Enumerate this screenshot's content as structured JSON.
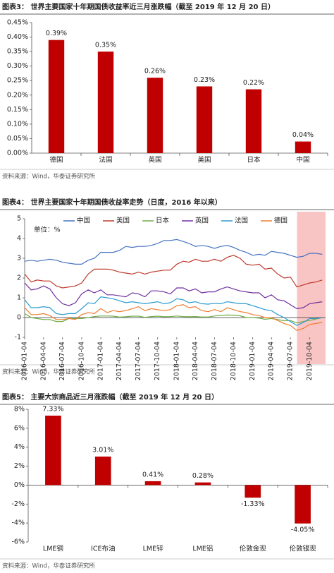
{
  "chart_data": [
    {
      "type": "bar",
      "title": "图表3：  世界主要国家十年期国债收益率近三月涨跌幅（截至 2019 年 12 月 20 日）",
      "source": "资料来源：Wind，华泰证券研究所",
      "categories": [
        "德国",
        "法国",
        "英国",
        "美国",
        "日本",
        "中国"
      ],
      "values": [
        0.39,
        0.35,
        0.26,
        0.23,
        0.22,
        0.04
      ],
      "value_labels": [
        "0.39%",
        "0.35%",
        "0.26%",
        "0.23%",
        "0.22%",
        "0.04%"
      ],
      "color": "#c00000",
      "ylim": [
        0,
        0.45
      ],
      "yticks": [
        {
          "value": 0,
          "label": "0.00%"
        },
        {
          "value": 0.05,
          "label": "0.05%"
        },
        {
          "value": 0.1,
          "label": "0.10%"
        },
        {
          "value": 0.15,
          "label": "0.15%"
        },
        {
          "value": 0.2,
          "label": "0.20%"
        },
        {
          "value": 0.25,
          "label": "0.25%"
        },
        {
          "value": 0.3,
          "label": "0.30%"
        },
        {
          "value": 0.35,
          "label": "0.35%"
        },
        {
          "value": 0.4,
          "label": "0.40%"
        },
        {
          "value": 0.45,
          "label": "0.45%"
        }
      ]
    },
    {
      "type": "line",
      "title": "图表4：  世界主要国家十年期国债收益率走势（日度，2016 年以来）",
      "source": "资料来源：Wind，华泰证券研究所",
      "annotation": "单位：%",
      "legend": "top",
      "highlight_x": [
        "2019-08-05",
        "2019-12-20"
      ],
      "highlight_color": "#f8c4c4",
      "xlim": [
        "2016-01-04",
        "2019-12-20"
      ],
      "xticks": [
        "2016-01-04",
        "2016-04-04",
        "2016-07-04",
        "2016-10-04",
        "2017-01-04",
        "2017-04-04",
        "2017-07-04",
        "2017-10-04",
        "2018-01-04",
        "2018-04-04",
        "2018-07-04",
        "2018-10-04",
        "2019-01-04",
        "2019-04-04",
        "2019-07-04",
        "2019-10-04"
      ],
      "ylim": [
        -1,
        5
      ],
      "yticks": [
        -1,
        0,
        1,
        2,
        3,
        4,
        5
      ],
      "x": [
        "2016-01-04",
        "2016-02-04",
        "2016-03-04",
        "2016-04-04",
        "2016-05-04",
        "2016-06-04",
        "2016-07-04",
        "2016-08-04",
        "2016-09-04",
        "2016-10-04",
        "2016-11-04",
        "2016-12-04",
        "2017-01-04",
        "2017-02-04",
        "2017-03-04",
        "2017-04-04",
        "2017-05-04",
        "2017-06-04",
        "2017-07-04",
        "2017-08-04",
        "2017-09-04",
        "2017-10-04",
        "2017-11-04",
        "2017-12-04",
        "2018-01-04",
        "2018-02-04",
        "2018-03-04",
        "2018-04-04",
        "2018-05-04",
        "2018-06-04",
        "2018-07-04",
        "2018-08-04",
        "2018-09-04",
        "2018-10-04",
        "2018-11-04",
        "2018-12-04",
        "2019-01-04",
        "2019-02-04",
        "2019-03-04",
        "2019-04-04",
        "2019-05-04",
        "2019-06-04",
        "2019-07-04",
        "2019-08-04",
        "2019-09-04",
        "2019-10-04",
        "2019-11-04",
        "2019-12-04"
      ],
      "series": [
        {
          "name": "中国",
          "color": "#4472c4",
          "values": [
            2.85,
            2.9,
            2.85,
            2.9,
            2.95,
            2.9,
            2.8,
            2.75,
            2.7,
            2.7,
            2.9,
            3.0,
            3.3,
            3.3,
            3.3,
            3.4,
            3.6,
            3.55,
            3.6,
            3.6,
            3.65,
            3.75,
            3.9,
            3.9,
            3.95,
            3.85,
            3.75,
            3.6,
            3.65,
            3.6,
            3.5,
            3.6,
            3.65,
            3.55,
            3.4,
            3.3,
            3.15,
            3.2,
            3.15,
            3.35,
            3.3,
            3.25,
            3.15,
            3.05,
            3.1,
            3.25,
            3.25,
            3.2
          ]
        },
        {
          "name": "美国",
          "color": "#c0392b",
          "values": [
            2.2,
            1.8,
            1.9,
            1.85,
            1.85,
            1.6,
            1.5,
            1.55,
            1.6,
            1.75,
            2.2,
            2.45,
            2.45,
            2.45,
            2.4,
            2.3,
            2.25,
            2.2,
            2.3,
            2.2,
            2.3,
            2.35,
            2.4,
            2.4,
            2.7,
            2.85,
            2.8,
            2.95,
            2.85,
            2.85,
            2.95,
            2.85,
            3.05,
            3.15,
            3.0,
            2.7,
            2.65,
            2.7,
            2.45,
            2.5,
            2.2,
            2.0,
            2.05,
            1.55,
            1.65,
            1.75,
            1.8,
            1.9
          ]
        },
        {
          "name": "日本",
          "color": "#70ad47",
          "values": [
            0.2,
            0.0,
            -0.05,
            -0.1,
            -0.1,
            -0.2,
            -0.2,
            -0.05,
            -0.05,
            -0.05,
            0.0,
            0.05,
            0.08,
            0.08,
            0.07,
            0.02,
            0.04,
            0.07,
            0.07,
            0.01,
            0.05,
            0.07,
            0.04,
            0.05,
            0.08,
            0.05,
            0.04,
            0.05,
            0.03,
            0.03,
            0.08,
            0.11,
            0.13,
            0.12,
            0.09,
            0.0,
            0.0,
            -0.03,
            -0.09,
            -0.05,
            -0.1,
            -0.16,
            -0.15,
            -0.27,
            -0.2,
            -0.15,
            -0.07,
            -0.01
          ]
        },
        {
          "name": "英国",
          "color": "#7030a0",
          "values": [
            1.75,
            1.4,
            1.45,
            1.6,
            1.45,
            1.0,
            0.7,
            0.6,
            0.75,
            1.2,
            1.4,
            1.25,
            1.4,
            1.15,
            1.15,
            1.1,
            1.05,
            1.25,
            1.2,
            1.05,
            1.35,
            1.35,
            1.3,
            1.2,
            1.5,
            1.5,
            1.35,
            1.45,
            1.25,
            1.3,
            1.3,
            1.45,
            1.55,
            1.45,
            1.35,
            1.3,
            1.25,
            1.25,
            1.0,
            1.15,
            0.9,
            0.85,
            0.65,
            0.45,
            0.5,
            0.7,
            0.75,
            0.8
          ]
        },
        {
          "name": "法国",
          "color": "#2e9ccf",
          "values": [
            0.9,
            0.5,
            0.5,
            0.55,
            0.5,
            0.2,
            0.15,
            0.2,
            0.2,
            0.45,
            0.75,
            0.7,
            1.05,
            1.0,
            0.95,
            0.85,
            0.75,
            0.8,
            0.75,
            0.7,
            0.75,
            0.8,
            0.7,
            0.75,
            0.95,
            0.9,
            0.75,
            0.8,
            0.7,
            0.68,
            0.72,
            0.7,
            0.8,
            0.75,
            0.7,
            0.7,
            0.6,
            0.5,
            0.4,
            0.35,
            0.15,
            0.0,
            -0.2,
            -0.4,
            -0.25,
            -0.05,
            -0.05,
            0.0
          ]
        },
        {
          "name": "德国",
          "color": "#ed7d31",
          "values": [
            0.5,
            0.15,
            0.15,
            0.2,
            0.1,
            -0.1,
            -0.1,
            -0.05,
            -0.1,
            0.15,
            0.25,
            0.2,
            0.45,
            0.25,
            0.35,
            0.3,
            0.35,
            0.45,
            0.55,
            0.35,
            0.45,
            0.4,
            0.35,
            0.4,
            0.6,
            0.65,
            0.5,
            0.55,
            0.35,
            0.3,
            0.4,
            0.3,
            0.5,
            0.4,
            0.3,
            0.25,
            0.15,
            0.1,
            0.0,
            0.0,
            -0.15,
            -0.3,
            -0.4,
            -0.65,
            -0.55,
            -0.35,
            -0.3,
            -0.25
          ]
        }
      ]
    },
    {
      "type": "bar",
      "title": "图表5：  主要大宗商品近三月涨跌幅（截至 2019 年 12 月 20 日）",
      "source": "资料来源：Wind，华泰证券研究所",
      "categories": [
        "LME铜",
        "ICE布油",
        "LME锌",
        "LME铝",
        "伦敦金现",
        "伦敦银现"
      ],
      "values": [
        7.33,
        3.01,
        0.41,
        0.28,
        -1.33,
        -4.05
      ],
      "value_labels": [
        "7.33%",
        "3.01%",
        "0.41%",
        "0.28%",
        "-1.33%",
        "-4.05%"
      ],
      "color": "#c00000",
      "ylim": [
        -6,
        8
      ],
      "yticks": [
        {
          "value": -6,
          "label": "-6%"
        },
        {
          "value": -4,
          "label": "-4%"
        },
        {
          "value": -2,
          "label": "-2%"
        },
        {
          "value": 0,
          "label": "0%"
        },
        {
          "value": 2,
          "label": "2%"
        },
        {
          "value": 4,
          "label": "4%"
        },
        {
          "value": 6,
          "label": "6%"
        },
        {
          "value": 8,
          "label": "8%"
        }
      ]
    }
  ]
}
